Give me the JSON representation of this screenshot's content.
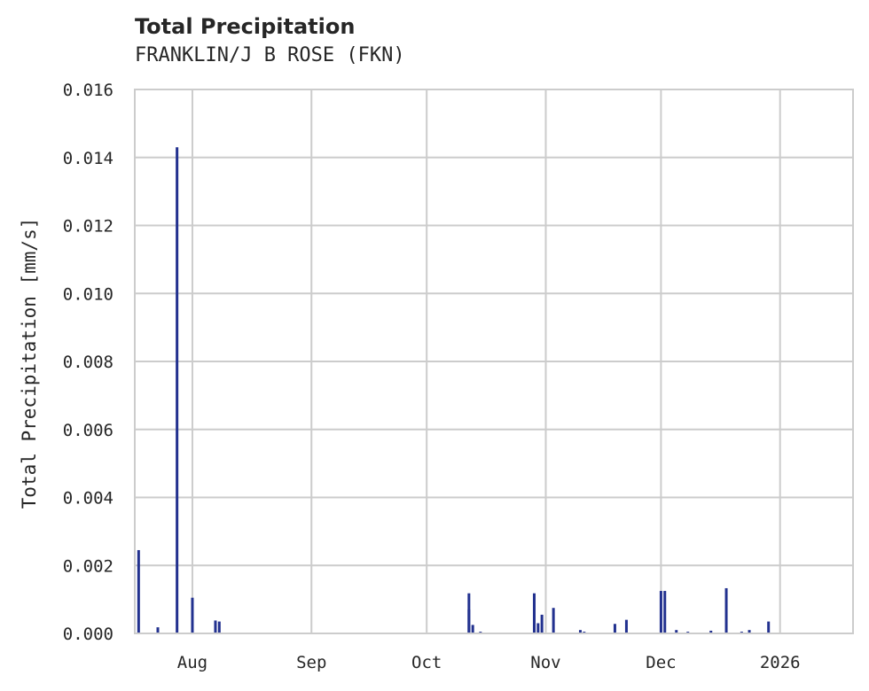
{
  "header": {
    "title": "Total Precipitation",
    "subtitle": "FRANKLIN/J B ROSE (FKN)"
  },
  "colors": {
    "series": "#22318f",
    "grid": "#cccccc",
    "axis": "#cccccc",
    "text": "#262626"
  },
  "chart_data": {
    "type": "bar",
    "title": "Total Precipitation",
    "subtitle": "FRANKLIN/J B ROSE (FKN)",
    "xlabel": "",
    "ylabel": "Total Precipitation [mm/s]",
    "ylim": [
      0,
      0.016
    ],
    "yticks": [
      "0.000",
      "0.002",
      "0.004",
      "0.006",
      "0.008",
      "0.010",
      "0.012",
      "0.014",
      "0.016"
    ],
    "xticks": [
      "Aug",
      "Sep",
      "Oct",
      "Nov",
      "Dec",
      "2026"
    ],
    "grid": true,
    "legend": null,
    "series": [
      {
        "name": "Total Precipitation",
        "points": [
          {
            "date": "2025-07-18",
            "value": 0.00245
          },
          {
            "date": "2025-07-23",
            "value": 0.00018
          },
          {
            "date": "2025-07-28",
            "value": 0.0143
          },
          {
            "date": "2025-08-01",
            "value": 0.00105
          },
          {
            "date": "2025-08-07",
            "value": 0.00038
          },
          {
            "date": "2025-08-08",
            "value": 0.00035
          },
          {
            "date": "2025-10-12",
            "value": 0.00118
          },
          {
            "date": "2025-10-12",
            "value": 0.0007
          },
          {
            "date": "2025-10-13",
            "value": 0.00025
          },
          {
            "date": "2025-10-15",
            "value": 5e-05
          },
          {
            "date": "2025-10-29",
            "value": 0.00118
          },
          {
            "date": "2025-10-30",
            "value": 0.0003
          },
          {
            "date": "2025-10-31",
            "value": 0.00055
          },
          {
            "date": "2025-11-03",
            "value": 0.00075
          },
          {
            "date": "2025-11-10",
            "value": 0.0001
          },
          {
            "date": "2025-11-11",
            "value": 5e-05
          },
          {
            "date": "2025-11-19",
            "value": 0.00028
          },
          {
            "date": "2025-11-22",
            "value": 0.0004
          },
          {
            "date": "2025-12-01",
            "value": 0.00125
          },
          {
            "date": "2025-12-02",
            "value": 0.00125
          },
          {
            "date": "2025-12-05",
            "value": 0.0001
          },
          {
            "date": "2025-12-08",
            "value": 5e-05
          },
          {
            "date": "2025-12-14",
            "value": 8e-05
          },
          {
            "date": "2025-12-18",
            "value": 0.00133
          },
          {
            "date": "2025-12-22",
            "value": 5e-05
          },
          {
            "date": "2025-12-24",
            "value": 0.0001
          },
          {
            "date": "2025-12-29",
            "value": 0.00035
          }
        ]
      }
    ]
  }
}
